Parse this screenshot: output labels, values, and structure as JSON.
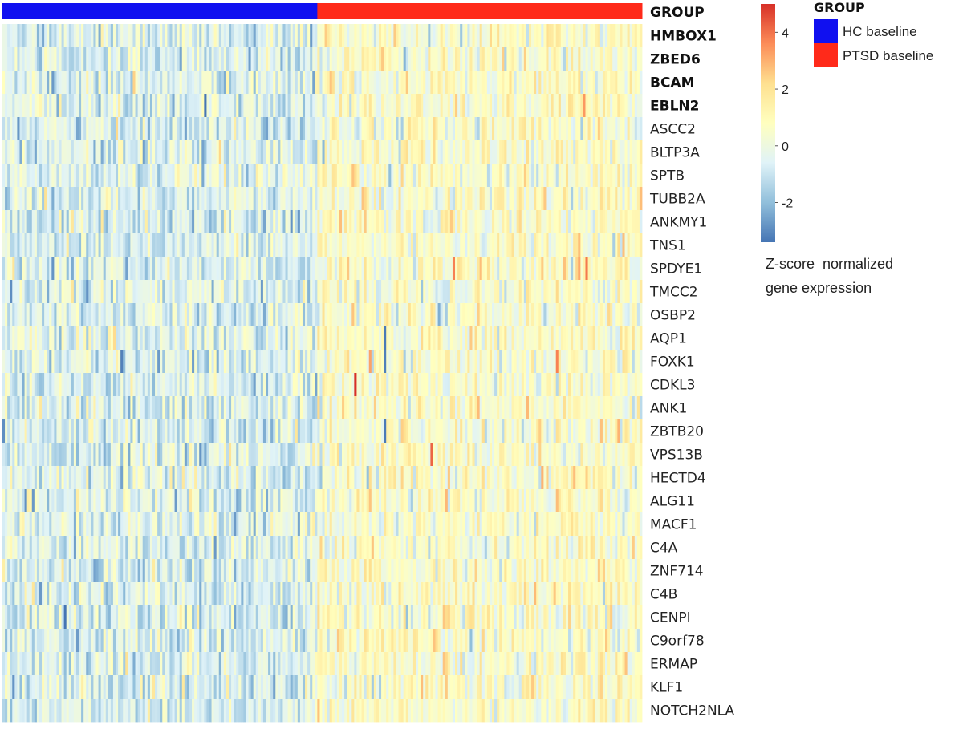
{
  "chart_data": {
    "type": "heatmap",
    "annotation_row_label": "GROUP",
    "genes": [
      {
        "name": "HMBOX1",
        "bold": true
      },
      {
        "name": "ZBED6",
        "bold": true
      },
      {
        "name": "BCAM",
        "bold": true
      },
      {
        "name": "EBLN2",
        "bold": true
      },
      {
        "name": "ASCC2",
        "bold": false
      },
      {
        "name": "BLTP3A",
        "bold": false
      },
      {
        "name": "SPTB",
        "bold": false
      },
      {
        "name": "TUBB2A",
        "bold": false
      },
      {
        "name": "ANKMY1",
        "bold": false
      },
      {
        "name": "TNS1",
        "bold": false
      },
      {
        "name": "SPDYE1",
        "bold": false
      },
      {
        "name": "TMCC2",
        "bold": false
      },
      {
        "name": "OSBP2",
        "bold": false
      },
      {
        "name": "AQP1",
        "bold": false
      },
      {
        "name": "FOXK1",
        "bold": false
      },
      {
        "name": "CDKL3",
        "bold": false
      },
      {
        "name": "ANK1",
        "bold": false
      },
      {
        "name": "ZBTB20",
        "bold": false
      },
      {
        "name": "VPS13B",
        "bold": false
      },
      {
        "name": "HECTD4",
        "bold": false
      },
      {
        "name": "ALG11",
        "bold": false
      },
      {
        "name": "MACF1",
        "bold": false
      },
      {
        "name": "C4A",
        "bold": false
      },
      {
        "name": "ZNF714",
        "bold": false
      },
      {
        "name": "C4B",
        "bold": false
      },
      {
        "name": "CENPI",
        "bold": false
      },
      {
        "name": "C9orf78",
        "bold": false
      },
      {
        "name": "ERMAP",
        "bold": false
      },
      {
        "name": "KLF1",
        "bold": false
      },
      {
        "name": "NOTCH2NLA",
        "bold": false
      }
    ],
    "groups": [
      {
        "name": "HC baseline",
        "color": "#1010f0",
        "n_samples": 128
      },
      {
        "name": "PTSD baseline",
        "color": "#ff2a1a",
        "n_samples": 132
      }
    ],
    "legend": {
      "title": "GROUP",
      "placement": "top-right",
      "entries": [
        {
          "label": "HC baseline",
          "color": "#1010f0"
        },
        {
          "label": "PTSD baseline",
          "color": "#ff2a1a"
        }
      ]
    },
    "colorbar": {
      "range": [
        -3.4,
        5.0
      ],
      "ticks": [
        4,
        2,
        0,
        -2
      ],
      "tick_labels": [
        "4",
        "2",
        "0",
        "-2"
      ],
      "colors": [
        "#4575b4",
        "#91bfdb",
        "#e0f3f8",
        "#ffffbf",
        "#fee090",
        "#fc8d59",
        "#d73027"
      ],
      "label_line1": "Z-score  normalized",
      "label_line2": "gene expression"
    },
    "highlights": [
      {
        "gene": "CDKL3",
        "group": "PTSD baseline",
        "value": 5.0
      },
      {
        "gene": "VPS13B",
        "group": "PTSD baseline",
        "value": 4.2
      },
      {
        "gene": "SPDYE1",
        "group": "PTSD baseline",
        "value": 3.8
      },
      {
        "gene": "AQP1",
        "group": "PTSD baseline",
        "value": -3.3
      },
      {
        "gene": "FOXK1",
        "group": "PTSD baseline",
        "value": -3.2
      },
      {
        "gene": "ZBTB20",
        "group": "PTSD baseline",
        "value": -3.3
      }
    ]
  }
}
